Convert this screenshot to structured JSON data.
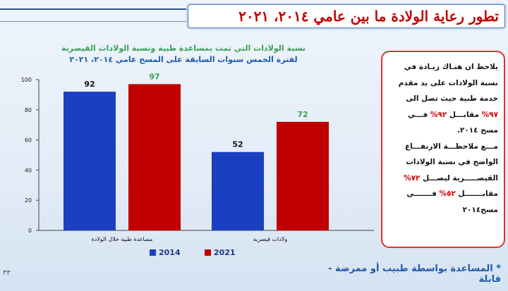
{
  "slide": {
    "title": "تطور رعاية الولادة ما بين عامي ٢٠١٤، ٢٠٢١",
    "page_number": "٣٣",
    "footnote": "* المساعدة بواسطة طبيب أو ممرضة - قابلة"
  },
  "chart_data": {
    "type": "bar",
    "title_line1": "نسبة الولادات التي تمت بمساعدة طبية ونسبة الولادات القيصرية",
    "title_line2": "لفترة الخمس سنوات السابقة على المسح عامي ٢٠١٤، ٢٠٢١",
    "categories": [
      "مساعدة طبية خلال الولادة",
      "ولادات قيصرية"
    ],
    "series": [
      {
        "name": "2014",
        "values": [
          92,
          52
        ],
        "color": "#1a3fc0"
      },
      {
        "name": "2021",
        "values": [
          97,
          72
        ],
        "color": "#c00000"
      }
    ],
    "data_label_colors": [
      "#111111",
      "#3aa055"
    ],
    "ylim": [
      0,
      100
    ],
    "yticks": [
      0,
      20,
      40,
      60,
      80,
      100
    ],
    "grid": false,
    "legend_position": "bottom"
  },
  "note": {
    "line1": "يلاحظ ان هنـاك زيـادة في",
    "line2": "نسبة الولادات على يد مقدم",
    "line3": "خدمة طبية حيث تصل الى",
    "line4_red": "٩٧%",
    "line4_rest": " مقابـــل ",
    "line4_red2": "٩٢%",
    "line4_end": " فـــي",
    "line5": "مسح ٢٠١٤.",
    "line6": "مـــع ملاحظـــة الارتفـــاع",
    "line7": "الواضح في نسبة الولادات",
    "line8_text": "القيصـــــرية ليصـــل ",
    "line8_red": "٧٢%",
    "line9_text": "مقابـــــــل ",
    "line9_red": "٥٢%",
    "line9_end": " فـــــــي",
    "line10": "مسح٢٠١٤"
  },
  "colors": {
    "title_red": "#c00000",
    "note_border": "#e03030",
    "accent_blue": "#1f5aa8"
  }
}
